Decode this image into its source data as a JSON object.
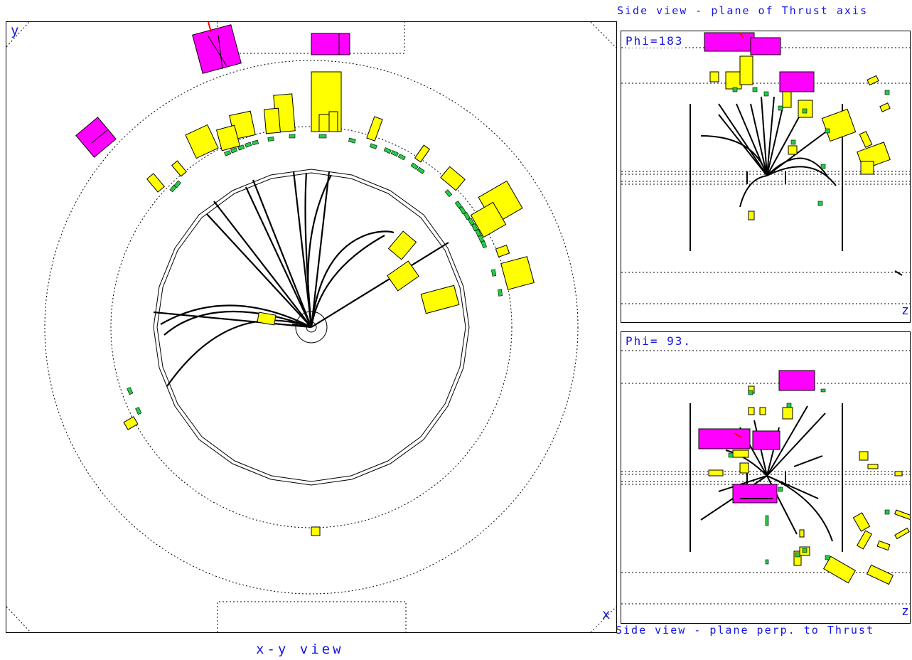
{
  "labels": {
    "top_right": "Side view - plane of Thrust axis",
    "bottom_right": "Side view - plane perp. to Thrust",
    "main_caption": "x-y view",
    "axis_y": "y",
    "axis_x": "x",
    "axis_z_top": "z",
    "axis_z_bottom": "z",
    "phi_top": "Phi=183",
    "phi_bottom": "Phi= 93."
  },
  "colors": {
    "label": "#1414e6",
    "calorimeter_em": "#ffff00",
    "calorimeter_hadronic": "#ff00ff",
    "muon_hits": "#00cc33",
    "tracks": "#000000"
  }
}
